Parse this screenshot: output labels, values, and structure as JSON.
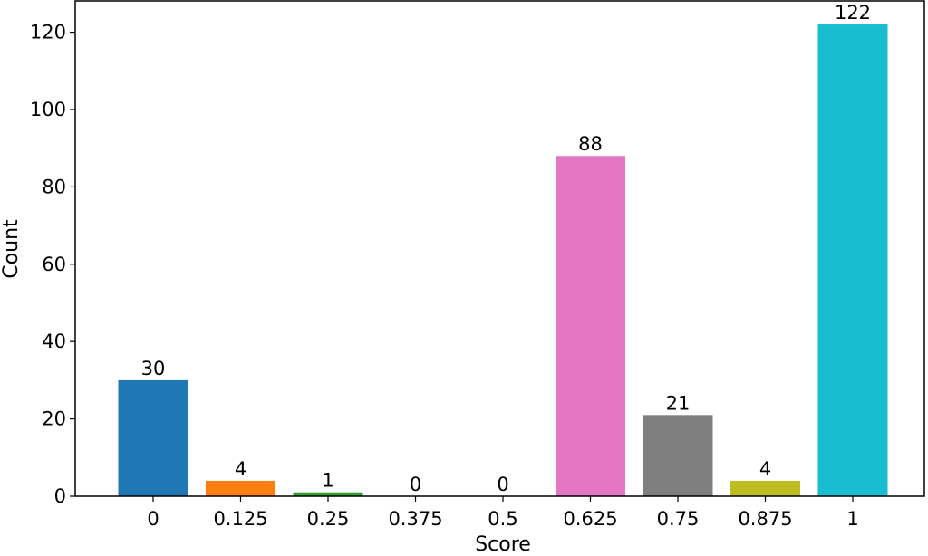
{
  "chart_data": {
    "type": "bar",
    "title": "",
    "xlabel": "Score",
    "ylabel": "Count",
    "categories": [
      "0",
      "0.125",
      "0.25",
      "0.375",
      "0.5",
      "0.625",
      "0.75",
      "0.875",
      "1"
    ],
    "values": [
      30,
      4,
      1,
      0,
      0,
      88,
      21,
      4,
      122
    ],
    "data_labels": [
      "30",
      "4",
      "1",
      "0",
      "0",
      "88",
      "21",
      "4",
      "122"
    ],
    "colors": [
      "#1f77b4",
      "#ff7f0e",
      "#2ca02c",
      "#d62728",
      "#9467bd",
      "#e377c2",
      "#7f7f7f",
      "#bcbd22",
      "#17becf"
    ],
    "ylim": [
      0,
      128.1
    ],
    "yticks": [
      0,
      20,
      40,
      60,
      80,
      100,
      120
    ],
    "ytick_labels": [
      "0",
      "20",
      "40",
      "60",
      "80",
      "100",
      "120"
    ],
    "grid": false,
    "legend": "none"
  }
}
